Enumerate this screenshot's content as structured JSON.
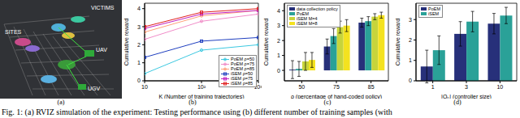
{
  "scene": {
    "labels": [
      "VICTIMS",
      "SITES",
      "UAV",
      "UGV"
    ],
    "subtitle": "(a)"
  },
  "caption": "Fig. 1: (a) RVIZ simulation of the experiment: Testing performance using (b) different number of training samples (with",
  "chart_data": [
    {
      "type": "line",
      "subtitle": "(b)",
      "x_label": "K (Number of training trajectories)",
      "y_label": "Cumulative reward",
      "x": [
        10,
        100,
        1000
      ],
      "log": "x",
      "xlim": [
        10,
        1000
      ],
      "xticks": [
        {
          "value": 10,
          "label": "10"
        },
        {
          "value": 100,
          "label": "10²"
        },
        {
          "value": 1000,
          "label": "10³"
        }
      ],
      "ylim": [
        0,
        4.3
      ],
      "yticks": [
        0,
        1,
        2,
        3,
        4
      ],
      "grid": false,
      "legend": "lower right",
      "series": [
        {
          "name": "PoEM ρ=50",
          "color": "#3cc8e0",
          "marker": "circle",
          "values": [
            0.4,
            1.7,
            2.0
          ]
        },
        {
          "name": "PoEM ρ=75",
          "color": "#f08cc8",
          "marker": "circle",
          "values": [
            2.3,
            3.3,
            3.7
          ]
        },
        {
          "name": "PoEM ρ=85",
          "color": "#ffa07a",
          "marker": "circle",
          "values": [
            2.7,
            3.6,
            3.9
          ]
        },
        {
          "name": "iSEM ρ=50",
          "color": "#1f3fbf",
          "marker": "square",
          "values": [
            1.3,
            2.2,
            2.4
          ]
        },
        {
          "name": "iSEM ρ=75",
          "color": "#c020c0",
          "marker": "square",
          "values": [
            2.9,
            3.7,
            3.9
          ]
        },
        {
          "name": "iSEM ρ=85",
          "color": "#e02020",
          "marker": "square",
          "values": [
            3.0,
            3.8,
            4.0
          ]
        }
      ]
    },
    {
      "type": "bar",
      "subtitle": "(c)",
      "x_label": "ρ (percentage of hand-coded policy)",
      "y_label": "Cumulative reward",
      "categories": [
        "50",
        "75",
        "85"
      ],
      "ylim": [
        -0.7,
        4.5
      ],
      "yticks": [
        0,
        1,
        2,
        3,
        4
      ],
      "grid": false,
      "legend": "upper left",
      "series": [
        {
          "name": "data collection policy",
          "color": "#27307a",
          "values": [
            0.05,
            1.6,
            3.2
          ],
          "errors": [
            0.6,
            0.5,
            0.3
          ]
        },
        {
          "name": "PoEM",
          "color": "#2aa198",
          "values": [
            0.1,
            2.3,
            3.3
          ],
          "errors": [
            0.5,
            0.5,
            0.3
          ]
        },
        {
          "name": "iSEM M=4",
          "color": "#c7d43b",
          "values": [
            0.6,
            2.9,
            3.6
          ],
          "errors": [
            0.6,
            0.4,
            0.2
          ]
        },
        {
          "name": "iSEM M=8",
          "color": "#f4e21f",
          "values": [
            0.7,
            3.0,
            3.7
          ],
          "errors": [
            0.5,
            0.4,
            0.2
          ]
        }
      ]
    },
    {
      "type": "bar",
      "subtitle": "(d)",
      "x_label": "|Qₙ| (controller size)",
      "y_label": "Cumulative reward",
      "categories": [
        "1",
        "3",
        "10"
      ],
      "ylim": [
        0,
        3.8
      ],
      "yticks": [
        0,
        1,
        2,
        3
      ],
      "grid": false,
      "legend": "upper left",
      "series": [
        {
          "name": "PoEM",
          "color": "#27307a",
          "values": [
            0.7,
            2.3,
            2.8
          ],
          "errors": [
            0.8,
            0.6,
            0.5
          ]
        },
        {
          "name": "iSEM",
          "color": "#2aa198",
          "values": [
            1.5,
            2.9,
            3.2
          ],
          "errors": [
            0.7,
            0.5,
            0.4
          ]
        }
      ]
    }
  ]
}
